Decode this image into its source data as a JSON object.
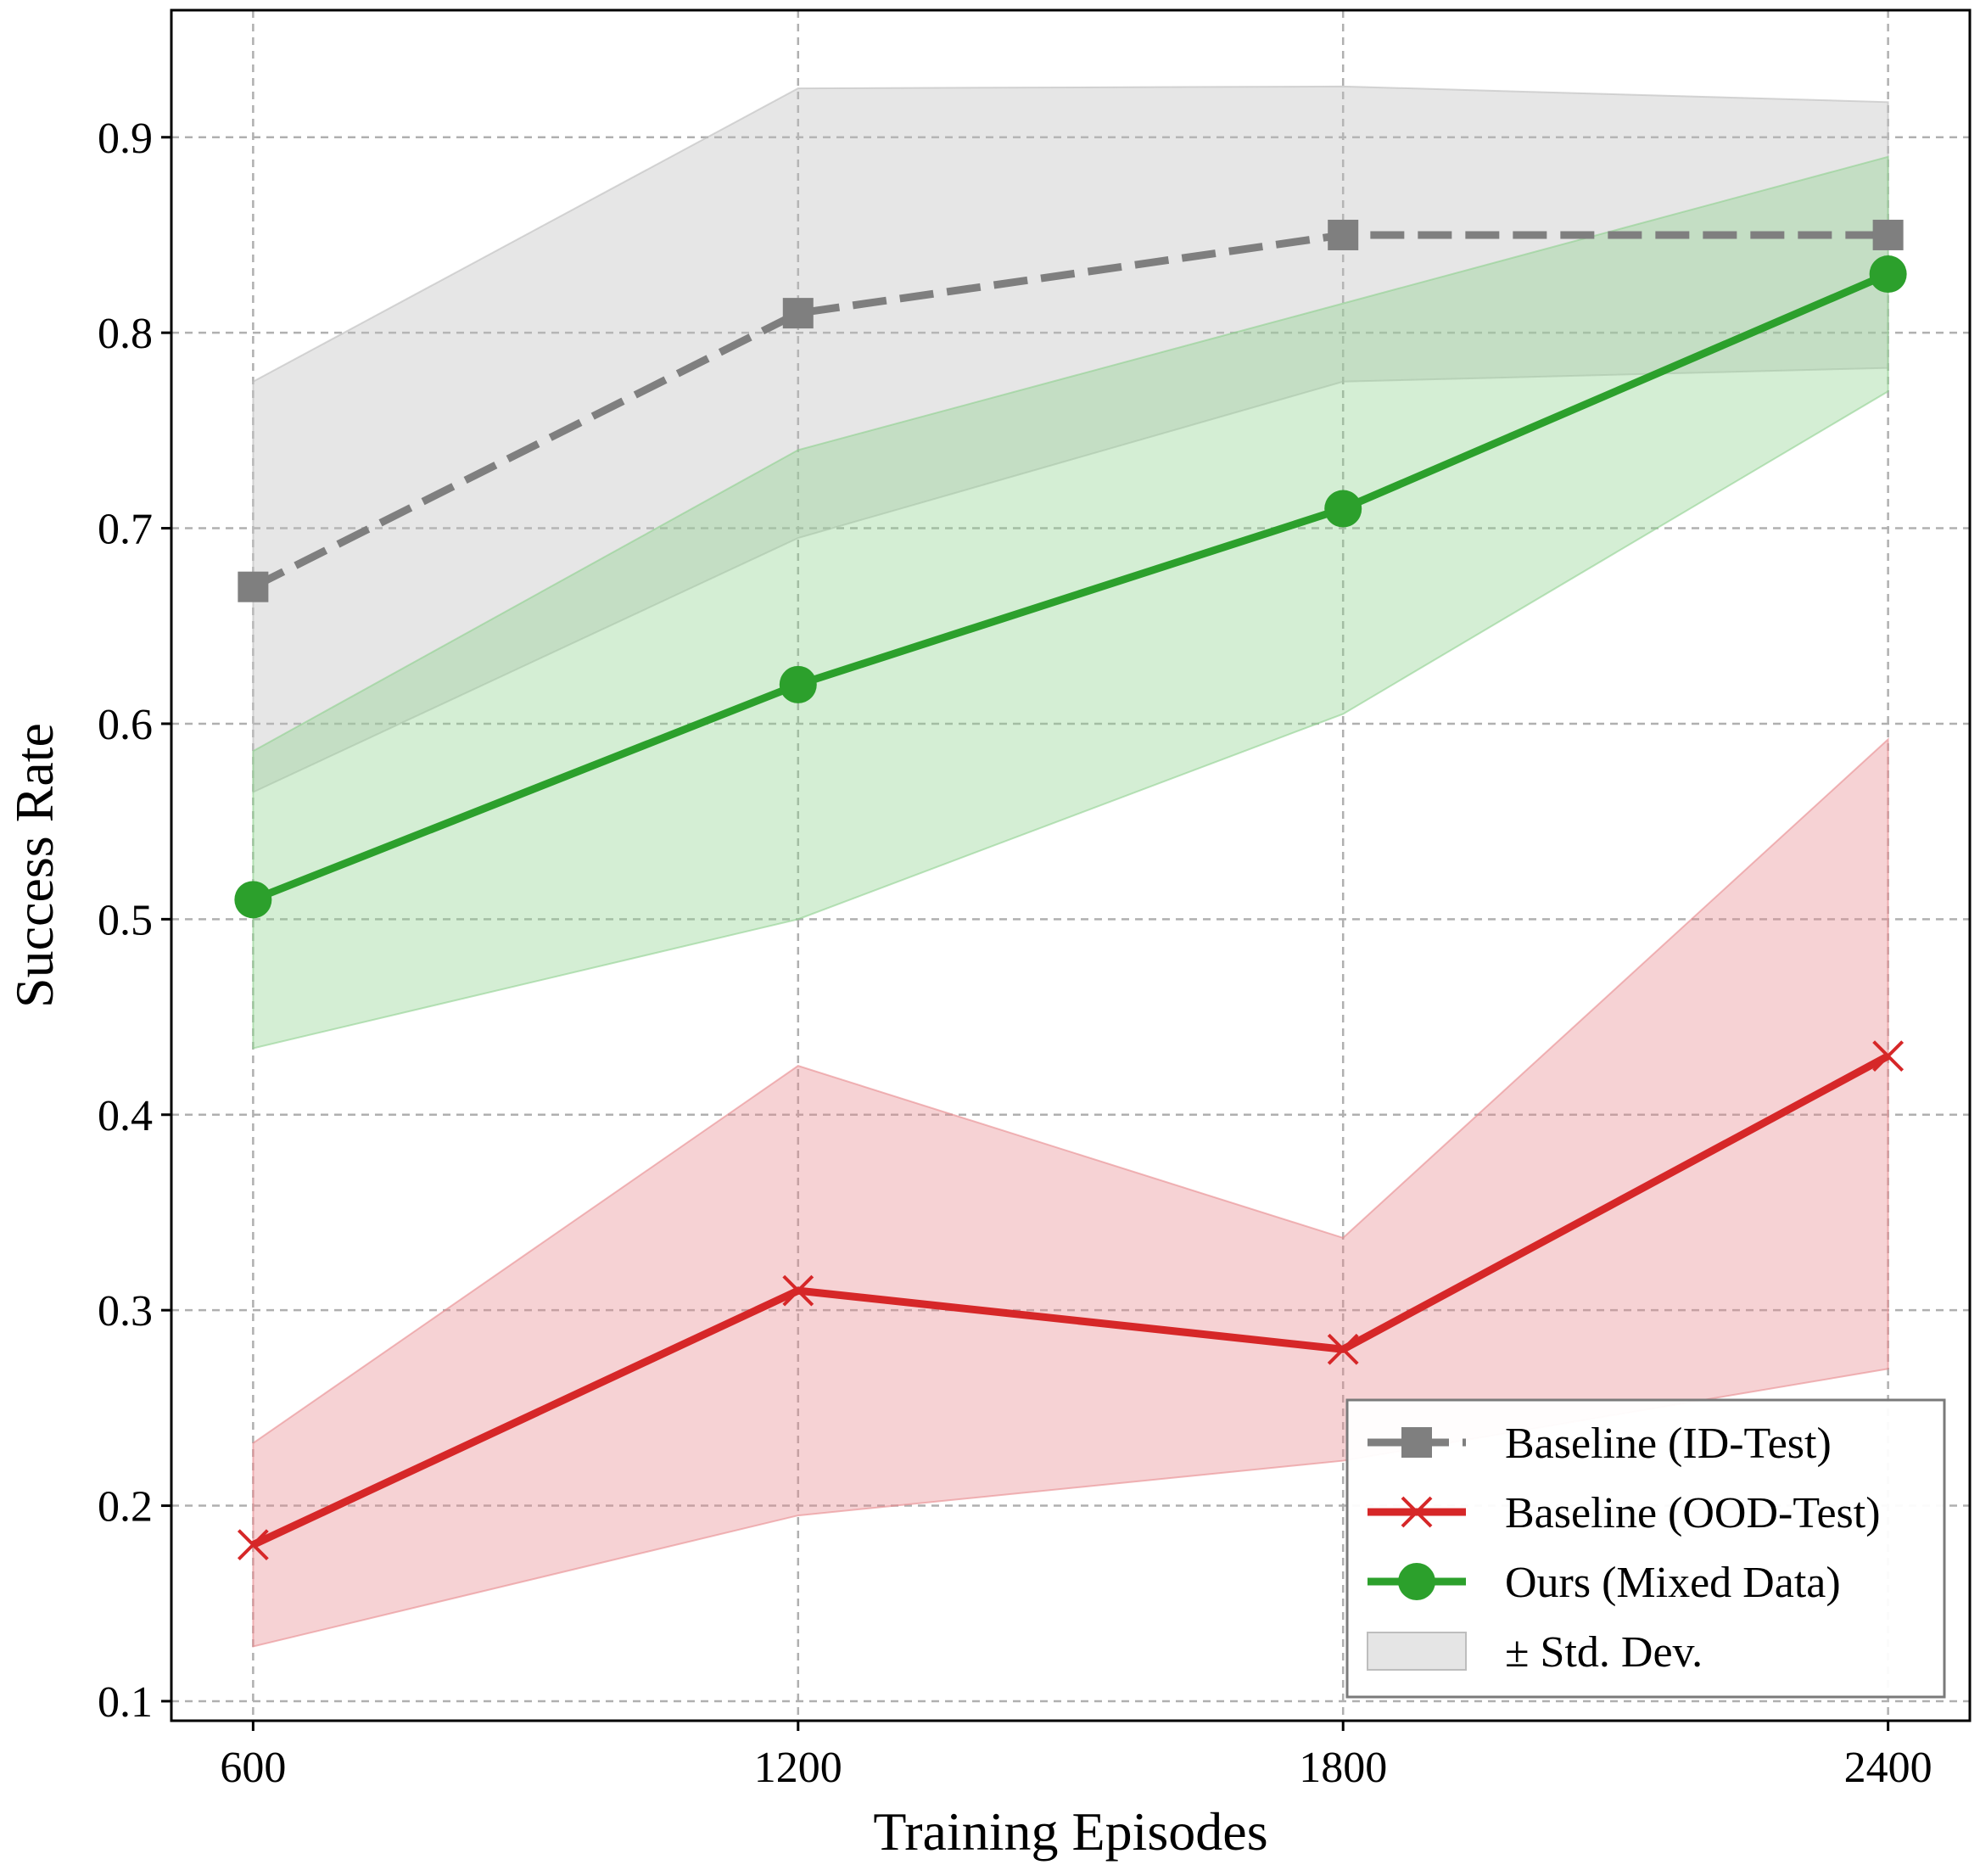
{
  "chart_data": {
    "type": "line",
    "xlabel": "Training Episodes",
    "ylabel": "Success Rate",
    "x": [
      600,
      1200,
      1800,
      2400
    ],
    "xticks": [
      "600",
      "1200",
      "1800",
      "2400"
    ],
    "xlim": [
      510,
      2490
    ],
    "ylim": [
      0.09,
      0.965
    ],
    "yticks": [
      "0.1",
      "0.2",
      "0.3",
      "0.4",
      "0.5",
      "0.6",
      "0.7",
      "0.8",
      "0.9"
    ],
    "ytick_values": [
      0.1,
      0.2,
      0.3,
      0.4,
      0.5,
      0.6,
      0.7,
      0.8,
      0.9
    ],
    "grid": true,
    "legend_position": "bottom-right",
    "series": [
      {
        "name": "Baseline (ID-Test)",
        "values": [
          0.67,
          0.81,
          0.85,
          0.85
        ],
        "lower": [
          0.565,
          0.695,
          0.775,
          0.782
        ],
        "upper": [
          0.775,
          0.925,
          0.926,
          0.918
        ],
        "color": "#7f7f7f",
        "band_color": "#bdbdbd",
        "marker": "square",
        "dashed": true
      },
      {
        "name": "Baseline (OOD-Test)",
        "values": [
          0.18,
          0.31,
          0.28,
          0.43
        ],
        "lower": [
          0.128,
          0.195,
          0.223,
          0.27
        ],
        "upper": [
          0.232,
          0.425,
          0.337,
          0.592
        ],
        "color": "#d62728",
        "band_color": "#e88a8d",
        "marker": "x",
        "dashed": false
      },
      {
        "name": "Ours (Mixed Data)",
        "values": [
          0.51,
          0.62,
          0.71,
          0.83
        ],
        "lower": [
          0.434,
          0.5,
          0.605,
          0.77
        ],
        "upper": [
          0.586,
          0.74,
          0.815,
          0.89
        ],
        "color": "#2ca02c",
        "band_color": "#8fd18f",
        "marker": "circle",
        "dashed": false
      }
    ],
    "legend_band_label": "± Std. Dev."
  }
}
